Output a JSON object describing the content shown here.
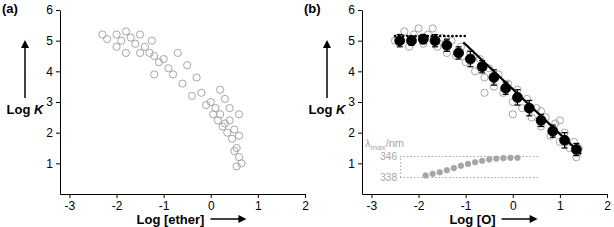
{
  "chart_data": [
    {
      "type": "scatter",
      "title": "(a)",
      "xlabel": "Log [ether]",
      "ylabel": "Log K",
      "xlim": [
        -3.2,
        2
      ],
      "ylim": [
        0,
        6
      ],
      "xticks": [
        -3,
        -2,
        -1,
        0,
        1,
        2
      ],
      "yticks": [
        1,
        2,
        3,
        4,
        5,
        6
      ],
      "series": [
        {
          "type": "scatter",
          "marker": "open-circle",
          "color": "#a6a6a6",
          "x": [
            -2.3,
            -2.2,
            -2.0,
            -1.9,
            -1.8,
            -1.7,
            -1.6,
            -1.5,
            -1.4,
            -1.3,
            -1.25,
            -1.2,
            -1.1,
            -1.0,
            -0.9,
            -0.8,
            -0.7,
            -0.6,
            -0.5,
            -0.4,
            -0.3,
            -0.2,
            -0.1,
            0.0,
            0.05,
            0.1,
            0.15,
            0.2,
            0.25,
            0.3,
            0.35,
            0.4,
            0.45,
            0.5,
            0.55,
            0.6,
            0.6,
            0.65,
            0.55,
            0.5,
            -1.5,
            -1.8,
            -2.0,
            -1.2,
            0.3,
            0.4,
            0.2,
            0.6
          ],
          "values": [
            5.2,
            5.05,
            5.2,
            5.0,
            5.3,
            5.1,
            4.9,
            5.2,
            4.8,
            4.6,
            5.0,
            4.5,
            4.3,
            4.4,
            4.1,
            3.9,
            4.6,
            3.6,
            4.2,
            3.2,
            3.8,
            3.3,
            2.9,
            3.0,
            2.6,
            2.8,
            2.4,
            2.6,
            2.2,
            2.3,
            2.0,
            2.4,
            1.8,
            2.1,
            1.5,
            1.9,
            1.2,
            1.0,
            0.9,
            1.4,
            4.6,
            4.6,
            4.8,
            3.9,
            3.1,
            2.8,
            3.4,
            2.6
          ]
        }
      ]
    },
    {
      "type": "scatter",
      "title": "(b)",
      "xlabel": "Log [O]",
      "ylabel": "Log K",
      "xlim": [
        -3.2,
        2
      ],
      "ylim": [
        0,
        6
      ],
      "xticks": [
        -3,
        -2,
        -1,
        0,
        1,
        2
      ],
      "yticks": [
        1,
        2,
        3,
        4,
        5,
        6
      ],
      "series": [
        {
          "type": "scatter",
          "marker": "open-circle",
          "color": "#a6a6a6",
          "x": [
            -2.5,
            -2.3,
            -2.2,
            -2.1,
            -2.0,
            -1.9,
            -1.8,
            -1.7,
            -1.6,
            -1.5,
            -1.4,
            -1.3,
            -1.2,
            -1.1,
            -1.0,
            -0.9,
            -0.8,
            -0.7,
            -0.6,
            -0.5,
            -0.4,
            -0.3,
            -0.2,
            -0.1,
            0.0,
            0.1,
            0.2,
            0.3,
            0.4,
            0.5,
            0.6,
            0.7,
            0.8,
            0.9,
            1.0,
            1.1,
            1.2,
            1.3,
            1.35,
            1.4,
            -0.6,
            0.0,
            0.6,
            1.0
          ],
          "values": [
            5.0,
            5.3,
            4.8,
            5.2,
            5.4,
            4.9,
            5.2,
            5.4,
            4.8,
            5.1,
            4.6,
            5.0,
            4.5,
            4.8,
            4.3,
            4.6,
            4.0,
            4.4,
            3.8,
            4.1,
            3.5,
            3.9,
            3.3,
            3.6,
            3.0,
            3.4,
            2.8,
            3.1,
            2.5,
            2.8,
            2.2,
            2.5,
            1.9,
            2.3,
            1.7,
            2.0,
            1.5,
            1.7,
            1.2,
            1.5,
            3.3,
            2.6,
            2.7,
            2.4
          ]
        },
        {
          "type": "scatter",
          "marker": "filled-circle",
          "color": "#000000",
          "x": [
            -2.4,
            -2.15,
            -1.9,
            -1.65,
            -1.4,
            -1.15,
            -0.9,
            -0.65,
            -0.4,
            -0.15,
            0.1,
            0.35,
            0.6,
            0.85,
            1.1,
            1.35
          ],
          "values": [
            5.0,
            5.0,
            5.05,
            5.0,
            4.85,
            4.6,
            4.4,
            4.15,
            3.8,
            3.45,
            3.15,
            2.8,
            2.4,
            2.05,
            1.75,
            1.45
          ],
          "errors": [
            0.2,
            0.15,
            0.15,
            0.2,
            0.2,
            0.2,
            0.25,
            0.2,
            0.25,
            0.2,
            0.25,
            0.25,
            0.2,
            0.2,
            0.25,
            0.2
          ]
        },
        {
          "type": "line",
          "line_style": "dotted",
          "color": "#000000",
          "x": [
            -2.5,
            -1.0
          ],
          "values": [
            5.15,
            5.15
          ]
        },
        {
          "type": "line",
          "line_style": "solid",
          "color": "#000000",
          "x": [
            -1.05,
            1.45
          ],
          "values": [
            4.95,
            1.3
          ]
        }
      ]
    },
    {
      "type": "scatter",
      "ylabel": "λmax/nm",
      "xlim": [
        -3.2,
        2
      ],
      "ylim": [
        338,
        346
      ],
      "yticks": [
        338,
        346
      ],
      "tick_labels": "y",
      "series": [
        {
          "type": "scatter",
          "marker": "filled-circle",
          "color": "#a6a6a6",
          "x": [
            -1.85,
            -1.7,
            -1.55,
            -1.4,
            -1.25,
            -1.1,
            -0.95,
            -0.8,
            -0.65,
            -0.5,
            -0.35,
            -0.2,
            -0.05,
            0.1
          ],
          "values": [
            338.6,
            339.2,
            339.8,
            340.6,
            341.4,
            342.3,
            343.0,
            343.6,
            344.2,
            344.7,
            345.0,
            345.2,
            345.3,
            345.3
          ]
        }
      ]
    }
  ]
}
